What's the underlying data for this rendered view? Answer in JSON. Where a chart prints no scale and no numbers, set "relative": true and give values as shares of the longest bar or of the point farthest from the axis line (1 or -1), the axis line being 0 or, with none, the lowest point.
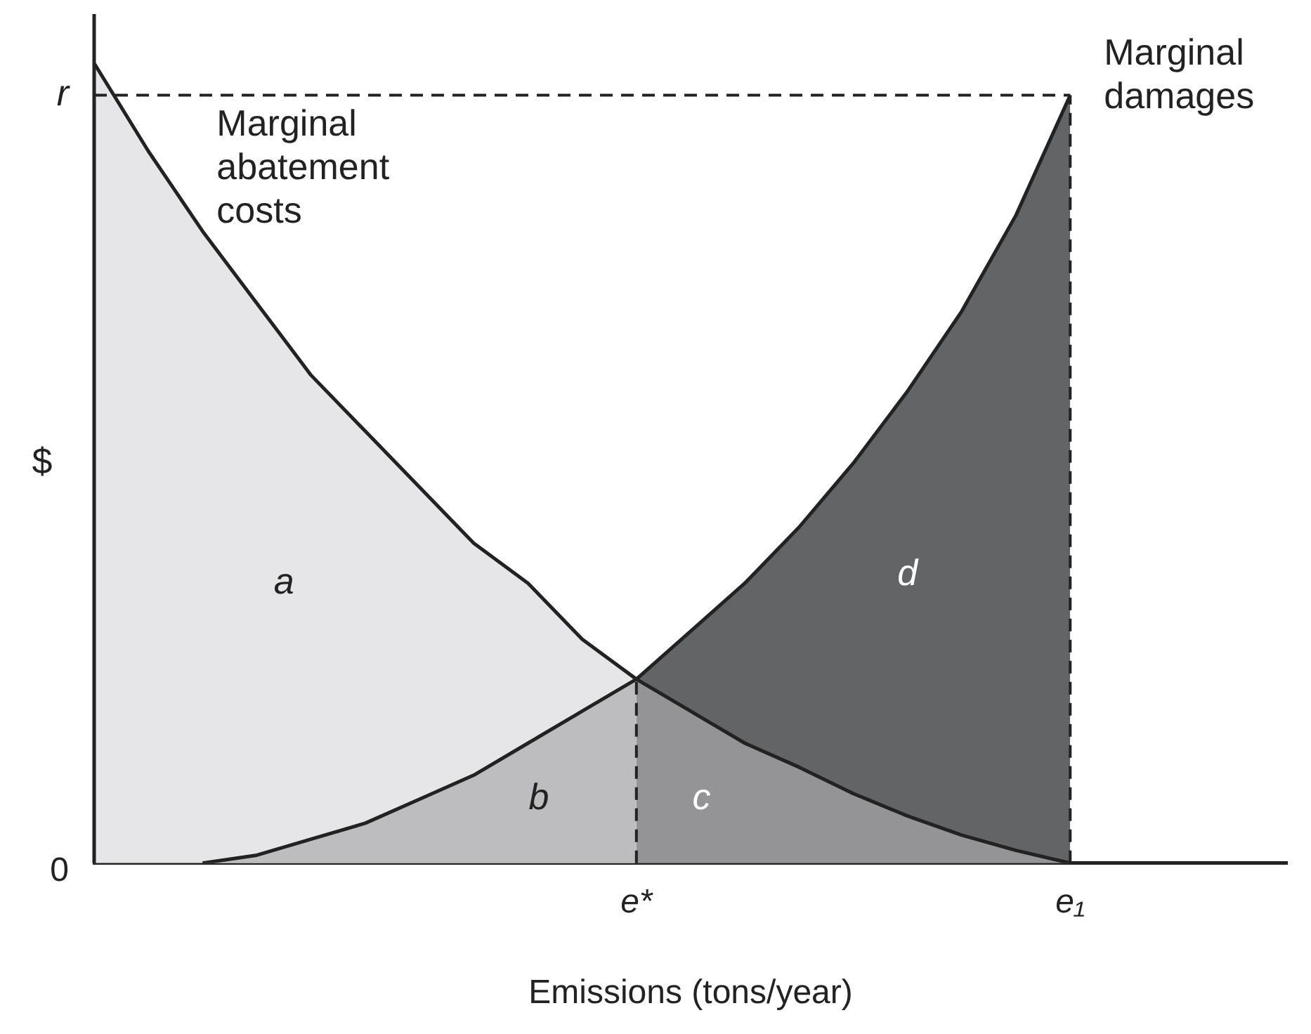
{
  "chart_data": {
    "type": "line",
    "relative": true,
    "xlabel": "Emissions (tons/year)",
    "ylabel": "$",
    "legend": false,
    "grid": false,
    "categories": [
      null,
      null,
      null,
      null,
      null,
      null,
      null,
      null,
      null,
      null,
      "e*",
      null,
      null,
      null,
      null,
      null,
      null,
      null,
      "e₁",
      null,
      null,
      null,
      null
    ],
    "series": [
      {
        "type": "area",
        "color": "#e6e6e8",
        "values": [
          1,
          0.89,
          0.79,
          0.7,
          0.61,
          0.54,
          0.47,
          0.4,
          0.35,
          0.28,
          0.23,
          null,
          null,
          null,
          null,
          null,
          null,
          null,
          null,
          null,
          null,
          null,
          null
        ]
      },
      {
        "type": "area",
        "color": "#bdbdbf",
        "values": [
          null,
          null,
          0,
          0.01,
          0.03,
          0.05,
          0.08,
          0.11,
          0.15,
          0.19,
          0.23,
          null,
          null,
          null,
          null,
          null,
          null,
          null,
          null,
          null,
          null,
          null,
          null
        ]
      },
      {
        "type": "area",
        "color": "#636466",
        "values": [
          null,
          null,
          null,
          null,
          null,
          null,
          null,
          null,
          null,
          null,
          0.23,
          0.29,
          0.35,
          0.42,
          0.5,
          0.59,
          0.69,
          0.81,
          0.96,
          null,
          null,
          null,
          null
        ]
      },
      {
        "type": "area",
        "color": "#949496",
        "values": [
          null,
          null,
          null,
          null,
          null,
          null,
          null,
          null,
          null,
          null,
          0.23,
          0.19,
          0.15,
          0.12,
          0.087,
          0.059,
          0.035,
          0.016,
          0,
          null,
          null,
          null,
          null
        ]
      },
      {
        "type": "line",
        "name": "Marginal abatement costs",
        "color": "#222222",
        "values": [
          1,
          0.89,
          0.79,
          0.7,
          0.61,
          0.54,
          0.47,
          0.4,
          0.35,
          0.28,
          0.23,
          0.19,
          0.15,
          0.12,
          0.087,
          0.059,
          0.035,
          0.016,
          0,
          null,
          null,
          null,
          null
        ]
      },
      {
        "type": "line",
        "name": "Marginal damages",
        "color": "#222222",
        "values": [
          null,
          null,
          0,
          0.01,
          0.03,
          0.05,
          0.08,
          0.11,
          0.15,
          0.19,
          0.23,
          0.29,
          0.35,
          0.42,
          0.5,
          0.59,
          0.69,
          0.81,
          0.96,
          null,
          null,
          null,
          null
        ]
      }
    ],
    "ref_lines": [
      {
        "axis": "y",
        "value": 0.96,
        "label": "r",
        "line_style": "dashed",
        "color": "#222222"
      },
      {
        "axis": "x",
        "value": "e*",
        "line_style": "dashed",
        "color": "#222222"
      },
      {
        "axis": "x",
        "value": "e₁",
        "line_style": "dashed",
        "color": "#222222"
      }
    ],
    "annotations": [
      "a",
      "b",
      "c",
      "d",
      "0"
    ]
  }
}
